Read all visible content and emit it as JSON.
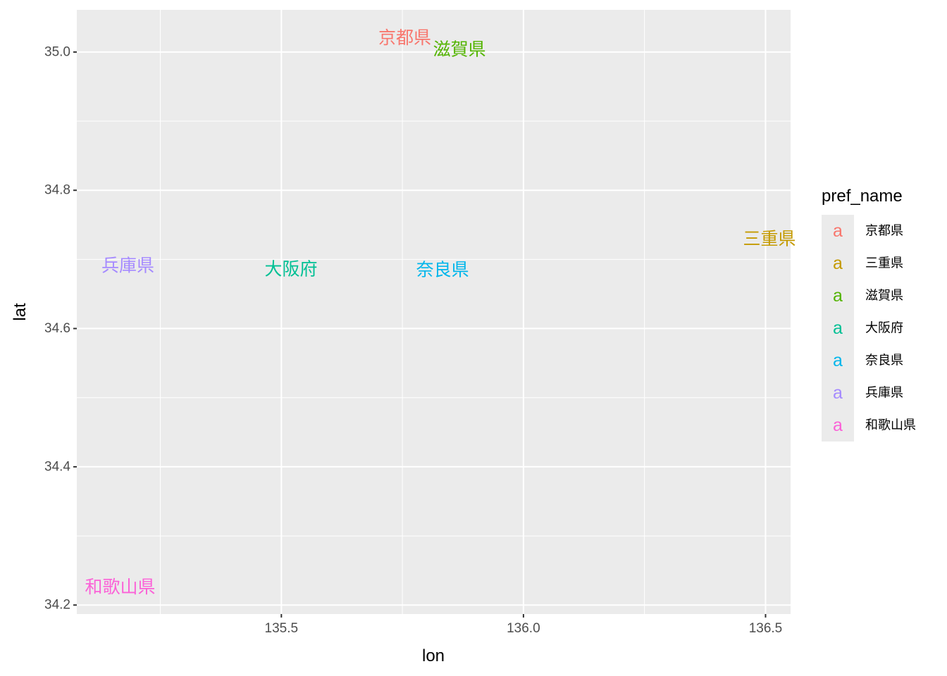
{
  "chart_data": {
    "type": "scatter",
    "geom": "text",
    "xlabel": "lon",
    "ylabel": "lat",
    "xlim": [
      135.0775,
      136.5517
    ],
    "ylim": [
      34.187,
      35.061
    ],
    "x_ticks": [
      135.5,
      136.0,
      136.5
    ],
    "x_tick_labels": [
      "135.5",
      "136.0",
      "136.5"
    ],
    "y_ticks": [
      34.2,
      34.4,
      34.6,
      34.8,
      35.0
    ],
    "y_tick_labels": [
      "34.2",
      "34.4",
      "34.6",
      "34.8",
      "35.0"
    ],
    "grid": true,
    "panel_background": "#ebebeb",
    "grid_color": "#ffffff",
    "legend": {
      "title": "pref_name",
      "position": "right",
      "key_glyph": "a",
      "entries": [
        "京都県",
        "三重県",
        "滋賀県",
        "大阪府",
        "奈良県",
        "兵庫県",
        "和歌山県"
      ]
    },
    "points": [
      {
        "label": "京都県",
        "x": 135.755,
        "y": 35.021,
        "color": "#F8766D"
      },
      {
        "label": "三重県",
        "x": 136.508,
        "y": 34.73,
        "color": "#C49A00"
      },
      {
        "label": "滋賀県",
        "x": 135.868,
        "y": 35.004,
        "color": "#53B400"
      },
      {
        "label": "大阪府",
        "x": 135.52,
        "y": 34.686,
        "color": "#00C094"
      },
      {
        "label": "奈良県",
        "x": 135.833,
        "y": 34.685,
        "color": "#00B6EB"
      },
      {
        "label": "兵庫県",
        "x": 135.183,
        "y": 34.691,
        "color": "#A58AFF"
      },
      {
        "label": "和歌山県",
        "x": 135.167,
        "y": 34.226,
        "color": "#FB61D7"
      }
    ]
  }
}
